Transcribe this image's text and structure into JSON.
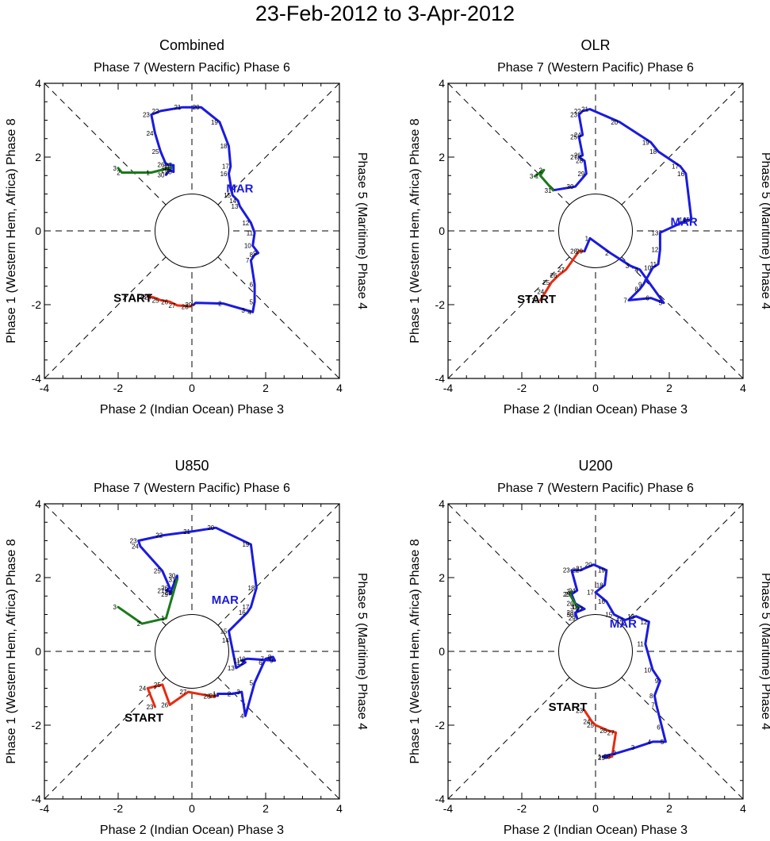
{
  "title": "23-Feb-2012 to 3-Apr-2012",
  "axes": {
    "top": "Phase 7 (Western Pacific) Phase 6",
    "bottom": "Phase 2 (Indian Ocean) Phase 3",
    "left": "Phase 1 (Western Hem, Africa) Phase 8",
    "right": "Phase 5 (Maritime) Phase 4",
    "ticks": [
      "-4",
      "-2",
      "0",
      "2",
      "4"
    ]
  },
  "labels": {
    "start": "START",
    "march": "MAR"
  },
  "colors": {
    "feb": "#e82a10",
    "mar": "#1a1ae0",
    "apr": "#1a7a1a",
    "axis": "#000000"
  },
  "chart_data": [
    {
      "type": "line",
      "title": "Combined",
      "xlim": [
        -4,
        4
      ],
      "ylim": [
        -4,
        4
      ],
      "mar_label_pos": [
        1.3,
        1.15
      ],
      "start_label_pos": [
        -1.6,
        -1.82
      ],
      "series": [
        {
          "name": "Feb",
          "color": "red",
          "labels": [
            "23",
            "24",
            "25",
            "26",
            "27",
            "28",
            "29"
          ],
          "points": [
            [
              -1.2,
              -1.78
            ],
            [
              -1.05,
              -1.8
            ],
            [
              -0.85,
              -1.88
            ],
            [
              -0.6,
              -1.92
            ],
            [
              -0.4,
              -2.02
            ],
            [
              -0.05,
              -2.05
            ],
            [
              0.05,
              -2.0
            ]
          ]
        },
        {
          "name": "Mar",
          "color": "blue",
          "labels": [
            "1",
            "2",
            "3",
            "4",
            "5",
            "6",
            "7",
            "8",
            "9",
            "10",
            "11",
            "12",
            "13",
            "14",
            "15",
            "16",
            "17",
            "18",
            "19",
            "20",
            "21",
            "22",
            "23",
            "24",
            "25",
            "26",
            "27",
            "28",
            "29",
            "30",
            "31"
          ],
          "points": [
            [
              0.1,
              -1.95
            ],
            [
              0.85,
              -1.97
            ],
            [
              1.48,
              -2.15
            ],
            [
              1.65,
              -2.2
            ],
            [
              1.7,
              -1.92
            ],
            [
              1.7,
              -1.45
            ],
            [
              1.6,
              -0.8
            ],
            [
              1.7,
              -0.65
            ],
            [
              1.8,
              -0.6
            ],
            [
              1.65,
              -0.4
            ],
            [
              1.7,
              -0.05
            ],
            [
              1.6,
              0.22
            ],
            [
              1.3,
              0.67
            ],
            [
              1.25,
              0.82
            ],
            [
              1.1,
              0.97
            ],
            [
              1.0,
              1.55
            ],
            [
              1.05,
              1.75
            ],
            [
              1.0,
              2.3
            ],
            [
              0.75,
              2.95
            ],
            [
              0.25,
              3.35
            ],
            [
              -0.25,
              3.35
            ],
            [
              -0.85,
              3.25
            ],
            [
              -1.1,
              3.15
            ],
            [
              -1.0,
              2.65
            ],
            [
              -0.85,
              2.15
            ],
            [
              -0.7,
              1.8
            ],
            [
              -0.5,
              1.78
            ],
            [
              -0.5,
              1.6
            ],
            [
              -0.6,
              1.65
            ],
            [
              -0.7,
              1.52
            ],
            [
              -0.55,
              1.72
            ]
          ]
        },
        {
          "name": "Apr",
          "color": "green",
          "labels": [
            "1",
            "2",
            "3"
          ],
          "points": [
            [
              -1.1,
              1.58
            ],
            [
              -1.9,
              1.58
            ],
            [
              -2.0,
              1.7
            ]
          ]
        }
      ]
    },
    {
      "type": "line",
      "title": "OLR",
      "xlim": [
        -4,
        4
      ],
      "ylim": [
        -4,
        4
      ],
      "mar_label_pos": [
        2.4,
        0.25
      ],
      "start_label_pos": [
        -1.6,
        -1.85
      ],
      "series": [
        {
          "name": "Feb",
          "color": "red",
          "labels": [
            "23",
            "24",
            "25",
            "26",
            "27",
            "28",
            "29"
          ],
          "points": [
            [
              -1.5,
              -1.88
            ],
            [
              -1.35,
              -1.65
            ],
            [
              -1.2,
              -1.4
            ],
            [
              -1.0,
              -1.2
            ],
            [
              -0.8,
              -1.05
            ],
            [
              -0.45,
              -0.55
            ],
            [
              -0.3,
              -0.55
            ]
          ]
        },
        {
          "name": "Mar",
          "color": "blue",
          "labels": [
            "1",
            "2",
            "3",
            "4",
            "5",
            "6",
            "7",
            "8",
            "9",
            "10",
            "11",
            "12",
            "13",
            "14",
            "15",
            "16",
            "17",
            "18",
            "19",
            "20",
            "21",
            "22",
            "23",
            "24",
            "25",
            "26",
            "27",
            "28",
            "29",
            "30",
            "31"
          ],
          "points": [
            [
              -0.15,
              -0.2
            ],
            [
              0.4,
              -0.6
            ],
            [
              0.95,
              -0.95
            ],
            [
              1.2,
              -1.05
            ],
            [
              1.85,
              -1.95
            ],
            [
              1.5,
              -1.82
            ],
            [
              0.9,
              -1.88
            ],
            [
              1.2,
              -1.58
            ],
            [
              1.3,
              -1.45
            ],
            [
              1.55,
              -1.0
            ],
            [
              1.7,
              -0.9
            ],
            [
              1.75,
              -0.5
            ],
            [
              1.75,
              -0.05
            ],
            [
              2.5,
              0.3
            ],
            [
              2.6,
              0.3
            ],
            [
              2.45,
              1.55
            ],
            [
              2.3,
              1.75
            ],
            [
              1.7,
              2.15
            ],
            [
              1.5,
              2.4
            ],
            [
              0.65,
              2.95
            ],
            [
              -0.15,
              3.3
            ],
            [
              -0.35,
              3.25
            ],
            [
              -0.45,
              3.15
            ],
            [
              -0.35,
              2.6
            ],
            [
              -0.45,
              2.55
            ],
            [
              -0.35,
              2.05
            ],
            [
              -0.45,
              2.0
            ],
            [
              -0.3,
              1.9
            ],
            [
              -0.25,
              1.55
            ],
            [
              -0.55,
              1.2
            ],
            [
              -1.15,
              1.1
            ]
          ]
        },
        {
          "name": "Apr",
          "color": "green",
          "labels": [
            "1",
            "2",
            "3"
          ],
          "points": [
            [
              -1.5,
              1.5
            ],
            [
              -1.4,
              1.65
            ],
            [
              -1.65,
              1.48
            ]
          ]
        }
      ]
    },
    {
      "type": "line",
      "title": "U850",
      "xlim": [
        -4,
        4
      ],
      "ylim": [
        -4,
        4
      ],
      "mar_label_pos": [
        0.9,
        1.4
      ],
      "start_label_pos": [
        -1.3,
        -1.8
      ],
      "series": [
        {
          "name": "Feb",
          "color": "red",
          "labels": [
            "23",
            "24",
            "25",
            "26",
            "27",
            "28",
            "29"
          ],
          "points": [
            [
              -1.0,
              -1.5
            ],
            [
              -1.2,
              -1.0
            ],
            [
              -0.8,
              -0.9
            ],
            [
              -0.6,
              -1.45
            ],
            [
              -0.1,
              -1.1
            ],
            [
              0.55,
              -1.22
            ],
            [
              0.7,
              -1.2
            ]
          ]
        },
        {
          "name": "Mar",
          "color": "blue",
          "labels": [
            "1",
            "2",
            "3",
            "4",
            "5",
            "6",
            "7",
            "8",
            "9",
            "10",
            "11",
            "12",
            "13",
            "14",
            "15",
            "16",
            "17",
            "18",
            "19",
            "20",
            "21",
            "22",
            "23",
            "24",
            "25",
            "26",
            "27",
            "28",
            "29",
            "30",
            "31"
          ],
          "points": [
            [
              0.7,
              -1.15
            ],
            [
              1.1,
              -1.15
            ],
            [
              1.35,
              -1.1
            ],
            [
              1.45,
              -1.75
            ],
            [
              1.7,
              -0.85
            ],
            [
              1.95,
              -0.3
            ],
            [
              2.0,
              -0.2
            ],
            [
              2.2,
              -0.15
            ],
            [
              2.25,
              -0.25
            ],
            [
              1.5,
              -0.2
            ],
            [
              1.35,
              -0.25
            ],
            [
              1.45,
              -0.3
            ],
            [
              1.2,
              -0.45
            ],
            [
              1.05,
              0.3
            ],
            [
              1.0,
              0.55
            ],
            [
              1.5,
              1.05
            ],
            [
              1.6,
              1.2
            ],
            [
              1.75,
              1.72
            ],
            [
              1.6,
              2.9
            ],
            [
              0.65,
              3.35
            ],
            [
              0.0,
              3.25
            ],
            [
              -0.75,
              3.15
            ],
            [
              -1.45,
              3.0
            ],
            [
              -1.4,
              2.85
            ],
            [
              -0.8,
              2.18
            ],
            [
              -0.6,
              1.72
            ],
            [
              -0.7,
              1.65
            ],
            [
              -0.5,
              1.6
            ],
            [
              -0.6,
              1.55
            ],
            [
              -0.4,
              2.05
            ],
            [
              -0.4,
              1.95
            ]
          ]
        },
        {
          "name": "Apr",
          "color": "green",
          "labels": [
            "1",
            "2",
            "3"
          ],
          "points": [
            [
              -0.7,
              0.9
            ],
            [
              -1.35,
              0.75
            ],
            [
              -2.0,
              1.2
            ]
          ]
        }
      ]
    },
    {
      "type": "line",
      "title": "U200",
      "xlim": [
        -4,
        4
      ],
      "ylim": [
        -4,
        4
      ],
      "mar_label_pos": [
        0.75,
        0.75
      ],
      "start_label_pos": [
        -0.75,
        -1.5
      ],
      "series": [
        {
          "name": "Feb",
          "color": "red",
          "labels": [
            "23",
            "24",
            "25",
            "26",
            "27",
            "28",
            "29"
          ],
          "points": [
            [
              -0.3,
              -1.6
            ],
            [
              -0.1,
              -1.9
            ],
            [
              0.0,
              -2.0
            ],
            [
              0.35,
              -2.15
            ],
            [
              0.55,
              -2.2
            ],
            [
              0.45,
              -2.85
            ],
            [
              0.3,
              -2.88
            ]
          ]
        },
        {
          "name": "Mar",
          "color": "blue",
          "labels": [
            "1",
            "2",
            "3",
            "4",
            "5",
            "6",
            "7",
            "8",
            "9",
            "10",
            "11",
            "12",
            "13",
            "14",
            "15",
            "16",
            "17",
            "18",
            "19",
            "20",
            "21",
            "22",
            "23",
            "24",
            "25",
            "26",
            "27",
            "28",
            "29",
            "30",
            "31"
          ],
          "points": [
            [
              0.2,
              -2.85
            ],
            [
              0.6,
              -2.75
            ],
            [
              1.1,
              -2.6
            ],
            [
              1.55,
              -2.45
            ],
            [
              1.9,
              -2.45
            ],
            [
              1.8,
              -2.05
            ],
            [
              1.65,
              -1.45
            ],
            [
              1.6,
              -1.2
            ],
            [
              1.75,
              -0.8
            ],
            [
              1.55,
              -0.5
            ],
            [
              1.35,
              0.2
            ],
            [
              1.45,
              0.8
            ],
            [
              1.1,
              0.95
            ],
            [
              0.8,
              0.85
            ],
            [
              0.5,
              1.0
            ],
            [
              0.3,
              1.35
            ],
            [
              0.0,
              1.6
            ],
            [
              0.25,
              1.8
            ],
            [
              0.3,
              2.2
            ],
            [
              -0.05,
              2.35
            ],
            [
              -0.3,
              2.25
            ],
            [
              -0.4,
              2.2
            ],
            [
              -0.65,
              2.2
            ],
            [
              -0.5,
              1.65
            ],
            [
              -0.65,
              1.55
            ],
            [
              -0.55,
              1.3
            ],
            [
              -0.3,
              1.15
            ],
            [
              -0.55,
              1.05
            ],
            [
              -0.5,
              0.9
            ],
            [
              -0.55,
              1.0
            ],
            [
              -0.45,
              1.2
            ]
          ]
        },
        {
          "name": "Apr",
          "color": "green",
          "labels": [
            "1",
            "2",
            "3"
          ],
          "points": [
            [
              -0.5,
              1.2
            ],
            [
              -0.7,
              1.55
            ],
            [
              -0.65,
              1.62
            ]
          ]
        }
      ]
    }
  ]
}
